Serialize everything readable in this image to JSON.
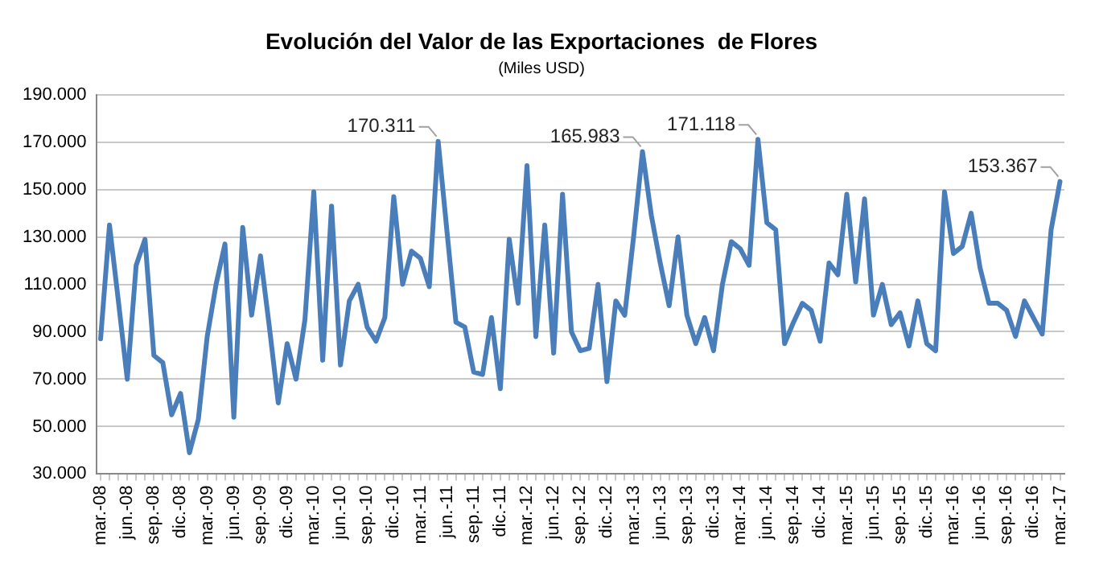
{
  "chart_data": {
    "type": "line",
    "title": "Evolución del Valor de las Exportaciones  de Flores",
    "subtitle": "(Miles USD)",
    "categories": [
      "mar.-08",
      null,
      null,
      "jun.-08",
      null,
      null,
      "sep.-08",
      null,
      null,
      "dic.-08",
      null,
      null,
      "mar.-09",
      null,
      null,
      "jun.-09",
      null,
      null,
      "sep.-09",
      null,
      null,
      "dic.-09",
      null,
      null,
      "mar.-10",
      null,
      null,
      "jun.-10",
      null,
      null,
      "sep.-10",
      null,
      null,
      "dic.-10",
      null,
      null,
      "mar.-11",
      null,
      null,
      "jun.-11",
      null,
      null,
      "sep.-11",
      null,
      null,
      "dic.-11",
      null,
      null,
      "mar.-12",
      null,
      null,
      "jun.-12",
      null,
      null,
      "sep.-12",
      null,
      null,
      "dic.-12",
      null,
      null,
      "mar.-13",
      null,
      null,
      "jun.-13",
      null,
      null,
      "sep.-13",
      null,
      null,
      "dic.-13",
      null,
      null,
      "mar.-14",
      null,
      null,
      "jun.-14",
      null,
      null,
      "sep.-14",
      null,
      null,
      "dic.-14",
      null,
      null,
      "mar.-15",
      null,
      null,
      "jun.-15",
      null,
      null,
      "sep.-15",
      null,
      null,
      "dic.-15",
      null,
      null,
      "mar.-16",
      null,
      null,
      "jun.-16",
      null,
      null,
      "sep.-16",
      null,
      null,
      "dic.-16",
      null,
      null,
      "mar.-17"
    ],
    "series": [
      {
        "color": "#4a7ebb",
        "values": [
          87000,
          135000,
          103000,
          70000,
          118000,
          129000,
          80000,
          77000,
          55000,
          64000,
          39000,
          53000,
          88000,
          110000,
          127000,
          54000,
          134000,
          97000,
          122000,
          92000,
          60000,
          85000,
          70000,
          95000,
          149000,
          78000,
          143000,
          76000,
          103000,
          110000,
          92000,
          86000,
          96000,
          147000,
          110000,
          124000,
          121000,
          109000,
          170311,
          132000,
          94000,
          92000,
          73000,
          72000,
          96000,
          66000,
          129000,
          102000,
          160000,
          88000,
          135000,
          81000,
          148000,
          90000,
          82000,
          83000,
          110000,
          69000,
          103000,
          97000,
          130000,
          165983,
          139000,
          119000,
          101000,
          130000,
          97000,
          85000,
          96000,
          82000,
          110000,
          128000,
          125000,
          118000,
          171118,
          136000,
          133000,
          85000,
          94000,
          102000,
          99000,
          86000,
          119000,
          114000,
          148000,
          111000,
          146000,
          97000,
          110000,
          93000,
          98000,
          84000,
          103000,
          85000,
          82000,
          149000,
          123000,
          126000,
          140000,
          117000,
          102000,
          102000,
          99000,
          88000,
          103000,
          96000,
          89000,
          133000,
          153367
        ],
        "value_labels": [
          null,
          null,
          null,
          null,
          null,
          null,
          null,
          null,
          null,
          null,
          null,
          null,
          null,
          null,
          null,
          null,
          null,
          null,
          null,
          null,
          null,
          null,
          null,
          null,
          null,
          null,
          null,
          null,
          null,
          null,
          null,
          null,
          null,
          null,
          null,
          null,
          null,
          null,
          "170.311",
          null,
          null,
          null,
          null,
          null,
          null,
          null,
          null,
          null,
          null,
          null,
          null,
          null,
          null,
          null,
          null,
          null,
          null,
          null,
          null,
          null,
          null,
          "165.983",
          null,
          null,
          null,
          null,
          null,
          null,
          null,
          null,
          null,
          null,
          null,
          null,
          "171.118",
          null,
          null,
          null,
          null,
          null,
          null,
          null,
          null,
          null,
          null,
          null,
          null,
          null,
          null,
          null,
          null,
          null,
          null,
          null,
          null,
          null,
          null,
          null,
          null,
          null,
          null,
          null,
          null,
          null,
          null,
          null,
          null,
          null,
          "153.367"
        ]
      }
    ],
    "ylim": [
      30000,
      190000
    ],
    "yticks": [
      {
        "value": 30000,
        "label": "30.000"
      },
      {
        "value": 50000,
        "label": "50.000"
      },
      {
        "value": 70000,
        "label": "70.000"
      },
      {
        "value": 90000,
        "label": "90.000"
      },
      {
        "value": 110000,
        "label": "110.000"
      },
      {
        "value": 130000,
        "label": "130.000"
      },
      {
        "value": 150000,
        "label": "150.000"
      },
      {
        "value": 170000,
        "label": "170.000"
      },
      {
        "value": 190000,
        "label": "190.000"
      }
    ],
    "grid": "y",
    "legend": false,
    "marker": "none",
    "line_style": "solid"
  }
}
